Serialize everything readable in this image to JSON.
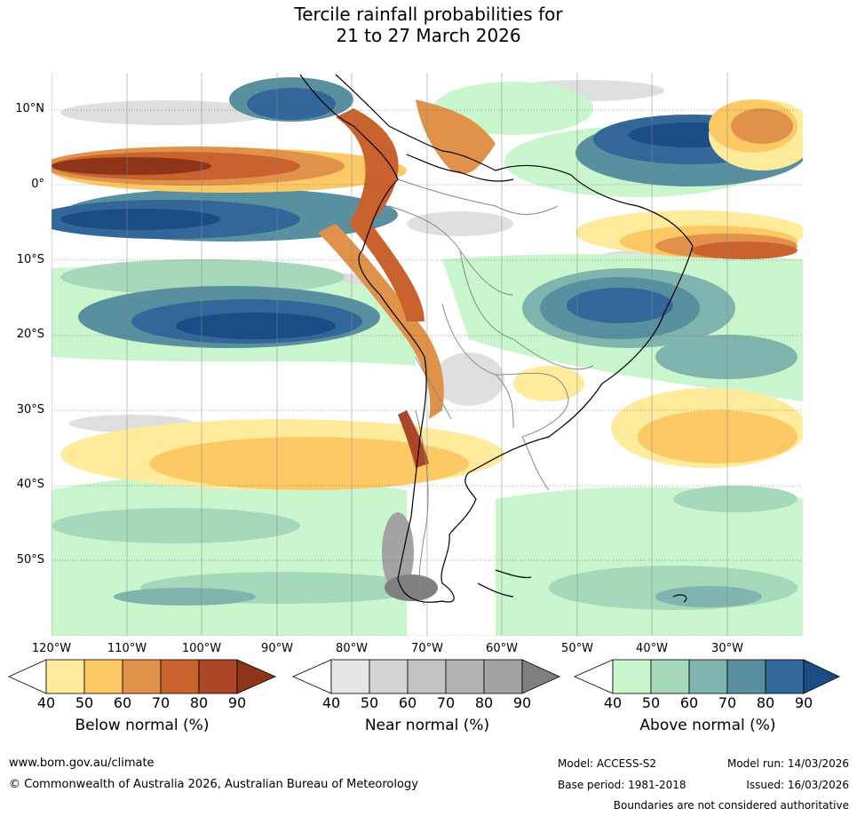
{
  "title_line1": "Tercile rainfall probabilities for",
  "title_line2": "21 to 27 March 2026",
  "lat_labels": [
    "10°N",
    "0°",
    "10°S",
    "20°S",
    "30°S",
    "40°S",
    "50°S"
  ],
  "lon_labels": [
    "120°W",
    "110°W",
    "100°W",
    "90°W",
    "80°W",
    "70°W",
    "60°W",
    "50°W",
    "40°W",
    "30°W"
  ],
  "legends": {
    "below": {
      "title": "Below normal (%)",
      "ticks": [
        "40",
        "50",
        "60",
        "70",
        "80",
        "90"
      ],
      "colors": [
        "#ffffff",
        "#ffeb9c",
        "#fdc964",
        "#e0924a",
        "#c9622f",
        "#ab4626",
        "#8e3519"
      ]
    },
    "near": {
      "title": "Near normal (%)",
      "ticks": [
        "40",
        "50",
        "60",
        "70",
        "80",
        "90"
      ],
      "colors": [
        "#ffffff",
        "#e6e6e6",
        "#d5d5d5",
        "#c3c3c3",
        "#b3b3b3",
        "#a3a3a3",
        "#7f7f7f"
      ]
    },
    "above": {
      "title": "Above normal (%)",
      "ticks": [
        "40",
        "50",
        "60",
        "70",
        "80",
        "90"
      ],
      "colors": [
        "#ffffff",
        "#c9f6cd",
        "#a6d8bc",
        "#7fb5ae",
        "#5990a0",
        "#336799",
        "#1a4d85"
      ]
    }
  },
  "footer": {
    "website": "www.bom.gov.au/climate",
    "copyright": "© Commonwealth of Australia 2026, Australian Bureau of Meteorology",
    "model": "Model: ACCESS-S2",
    "base_period": "Base period: 1981-2018",
    "model_run": "Model run: 14/03/2026",
    "issued": "Issued: 16/03/2026",
    "disclaimer": "Boundaries are not considered authoritative"
  }
}
